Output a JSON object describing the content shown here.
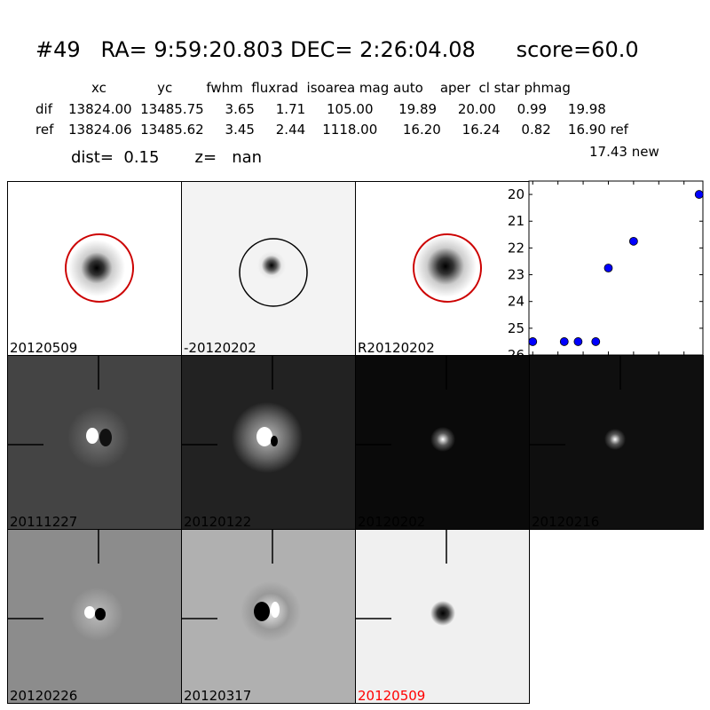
{
  "header": {
    "title": "#49   RA= 9:59:20.803 DEC= 2:26:04.08      score=60.0",
    "col_header": "xc            yc        fwhm  fluxrad  isoarea mag auto    aper  cl star phmag",
    "row_dif_label": "dif",
    "row_dif": "13824.00  13485.75     3.65     1.71     105.00      19.89     20.00     0.99     19.98",
    "row_ref_label": "ref",
    "row_ref": "13824.06  13485.62     3.45     2.44    1118.00      16.20     16.24     0.82    16.90 ref",
    "new_mag": "17.43 new",
    "dist_line": "dist=  0.15       z=   nan"
  },
  "panels": [
    {
      "label": "20120509",
      "style": "psf",
      "circle_color": "#cc0000",
      "label_color": "#000000"
    },
    {
      "label": "-20120202",
      "style": "diff_neg",
      "circle_color": "#000000",
      "label_color": "#000000"
    },
    {
      "label": "R20120202",
      "style": "psf",
      "circle_color": "#cc0000",
      "label_color": "#000000"
    },
    {
      "label": "20111227",
      "style": "cut",
      "bg": "#444444",
      "label_color": "#000000"
    },
    {
      "label": "20120122",
      "style": "cut",
      "bg": "#222222",
      "label_color": "#000000"
    },
    {
      "label": "20120202",
      "style": "cut",
      "bg": "#0a0a0a",
      "label_color": "#000000"
    },
    {
      "label": "20120216",
      "style": "cut",
      "bg": "#0f0f0f",
      "label_color": "#000000"
    },
    {
      "label": "20120226",
      "style": "cut",
      "bg": "#8c8c8c",
      "label_color": "#000000"
    },
    {
      "label": "20120317",
      "style": "cut",
      "bg": "#b0b0b0",
      "label_color": "#000000"
    },
    {
      "label": "20120509",
      "style": "cut",
      "bg": "#f0f0f0",
      "label_color": "#ff0000"
    }
  ],
  "chart_data": {
    "type": "scatter",
    "x": [
      0,
      25,
      36,
      50,
      60,
      80,
      132
    ],
    "y": [
      25.5,
      25.5,
      25.5,
      25.5,
      22.75,
      21.75,
      20.0
    ],
    "xlim": [
      -3,
      135
    ],
    "ylim": [
      26,
      19.5
    ],
    "xticks": [
      "0",
      "20",
      "40",
      "60",
      "80",
      "100",
      "120"
    ],
    "yticks": [
      "20",
      "21",
      "22",
      "23",
      "24",
      "25",
      "26"
    ],
    "marker_color": "#0000ff",
    "inverted_y": true
  }
}
